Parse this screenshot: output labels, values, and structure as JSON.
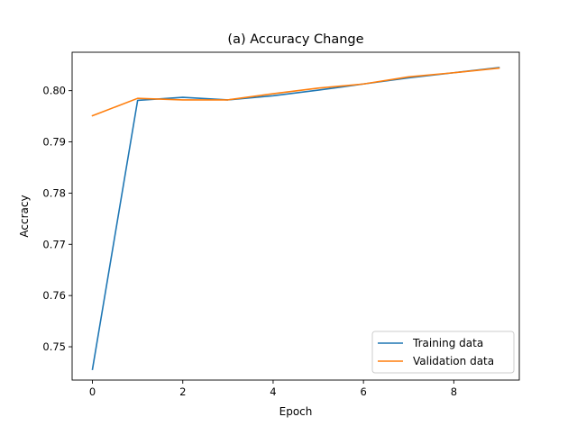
{
  "chart_data": {
    "type": "line",
    "title": "(a) Accuracy Change",
    "xlabel": "Epoch",
    "ylabel": "Accracy",
    "xlim": [
      -0.45,
      9.45
    ],
    "ylim": [
      0.7435,
      0.8075
    ],
    "xticks": [
      0,
      2,
      4,
      6,
      8
    ],
    "yticks": [
      0.75,
      0.76,
      0.77,
      0.78,
      0.79,
      0.8
    ],
    "xtick_labels": [
      "0",
      "2",
      "4",
      "6",
      "8"
    ],
    "ytick_labels": [
      "0.75",
      "0.76",
      "0.77",
      "0.78",
      "0.79",
      "0.80"
    ],
    "grid": false,
    "legend_position": "lower-right",
    "x": [
      0,
      1,
      2,
      3,
      4,
      5,
      6,
      7,
      8,
      9
    ],
    "series": [
      {
        "name": "Training data",
        "color": "#1f77b4",
        "values": [
          0.7456,
          0.7981,
          0.7987,
          0.7982,
          0.799,
          0.8001,
          0.8013,
          0.8025,
          0.8035,
          0.8045
        ]
      },
      {
        "name": "Validation data",
        "color": "#ff7f0e",
        "values": [
          0.7951,
          0.7985,
          0.7982,
          0.7982,
          0.7994,
          0.8005,
          0.8013,
          0.8027,
          0.8035,
          0.8044
        ]
      }
    ]
  }
}
